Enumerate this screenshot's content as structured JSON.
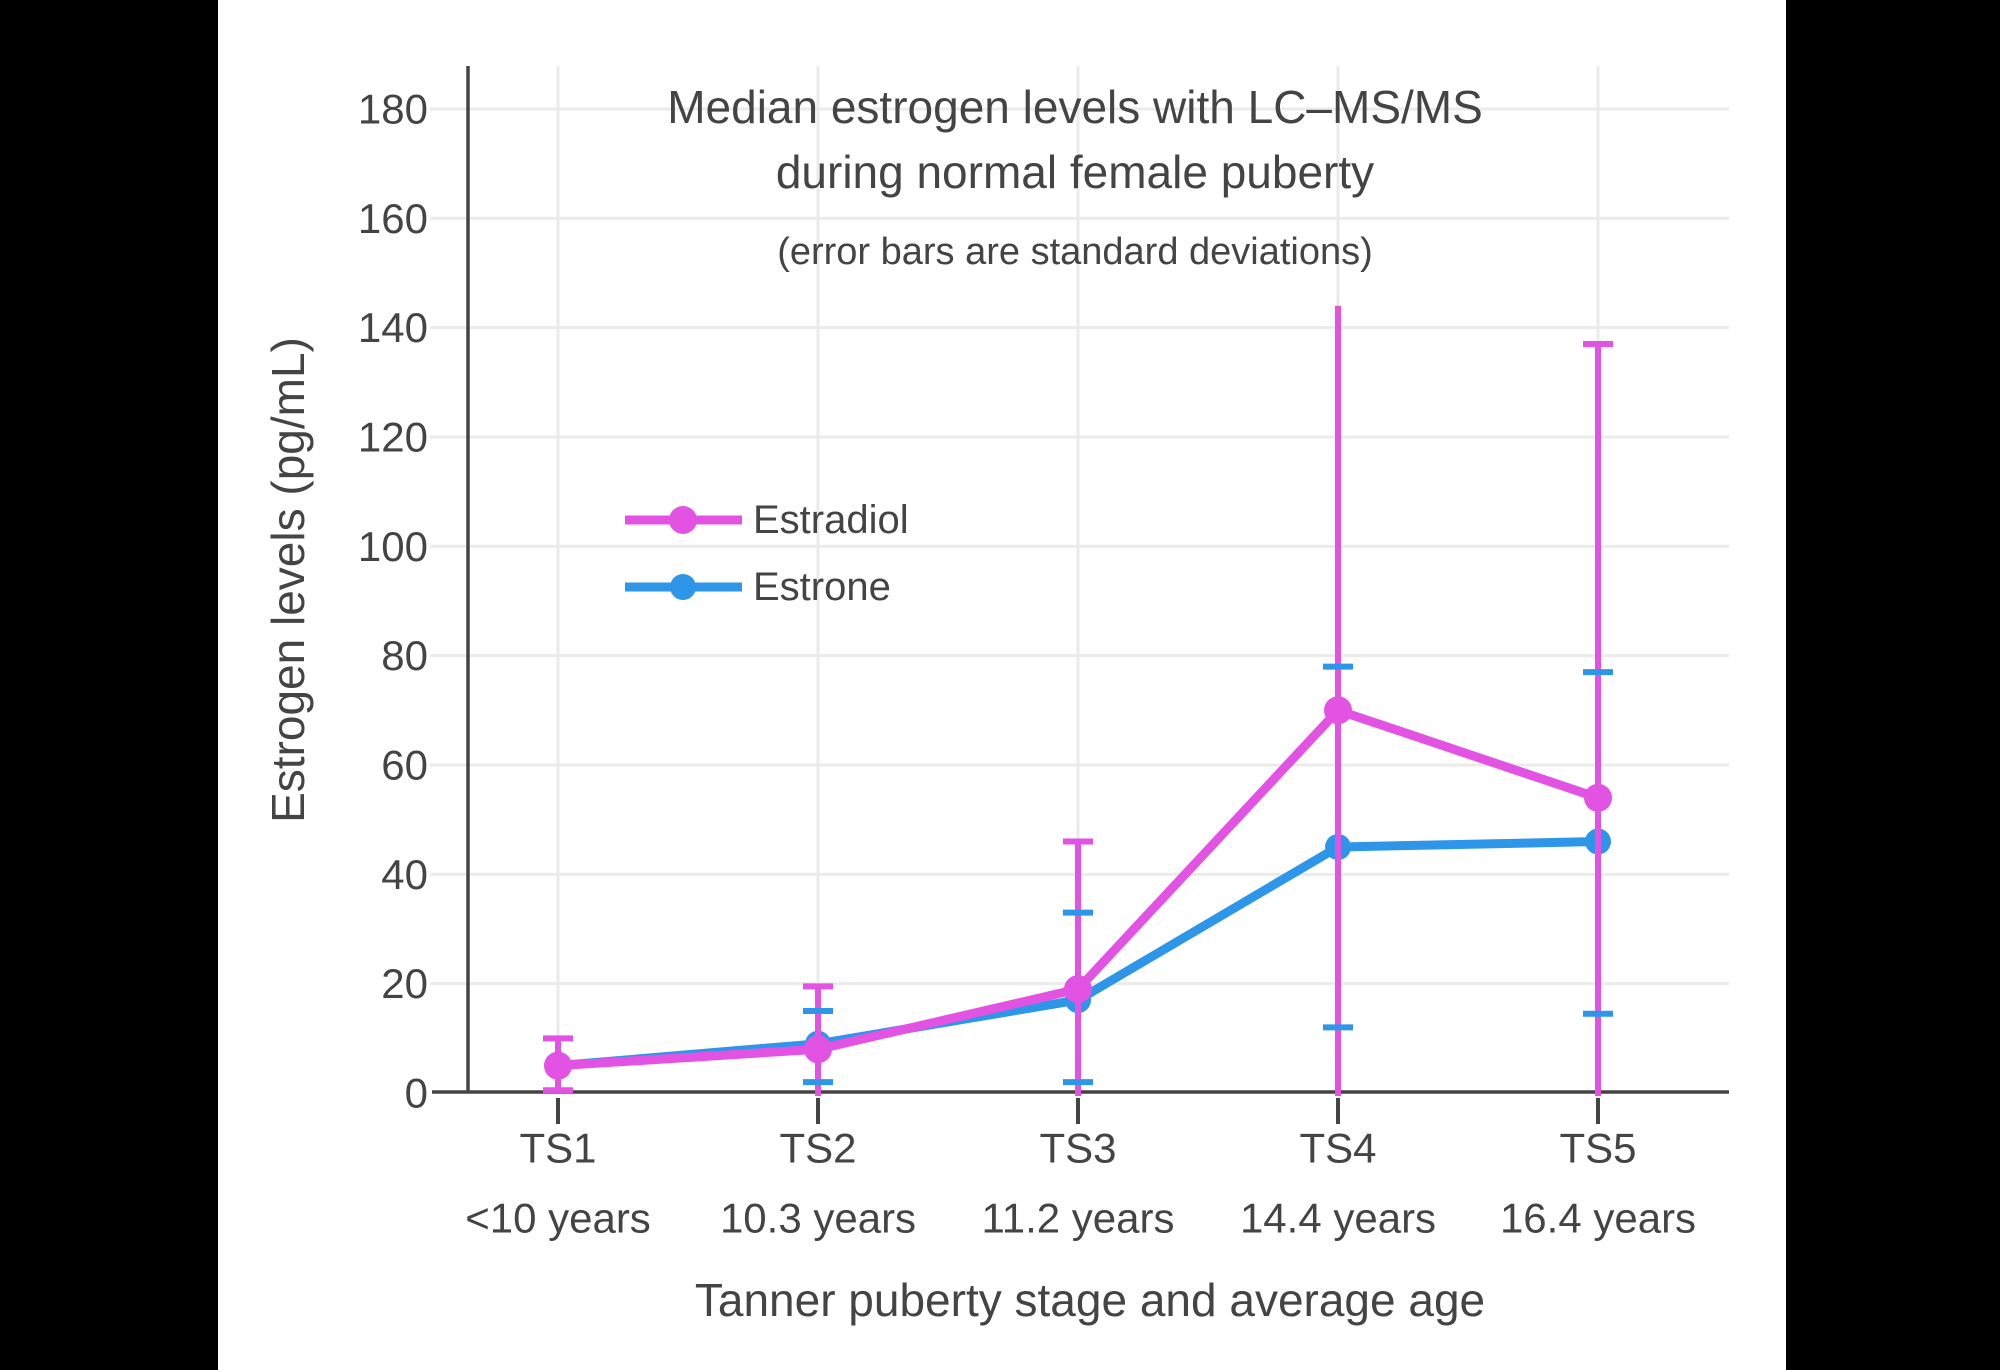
{
  "window": {
    "background_color": "#000000",
    "canvas_color": "#FFFFFF"
  },
  "colors": {
    "text": "#444444",
    "axis": "#444444",
    "gridline": "#EBEBEB",
    "estradiol": "#E353E3",
    "estrone": "#2E96E8"
  },
  "legend": {
    "items": [
      {
        "label": "Estradiol",
        "series": "Estradiol"
      },
      {
        "label": "Estrone",
        "series": "Estrone"
      }
    ]
  },
  "chart_data": {
    "type": "line",
    "title": "Median estrogen levels with LC–MS/MS",
    "title_line2": "during normal female puberty",
    "subtitle": "(error bars are standard deviations)",
    "xlabel": "Tanner puberty stage and average age",
    "ylabel": "Estrogen levels (pg/mL)",
    "ylim": [
      0,
      190
    ],
    "yticks": [
      0,
      20,
      40,
      60,
      80,
      100,
      120,
      140,
      160,
      180
    ],
    "grid": true,
    "legend_position": "inside-upper-left",
    "categories": [
      "TS1",
      "TS2",
      "TS3",
      "TS4",
      "TS5"
    ],
    "category_ages": [
      "<10 years",
      "10.3 years",
      "11.2 years",
      "14.4 years",
      "16.4 years"
    ],
    "units": "pg/mL",
    "series": [
      {
        "name": "Estradiol",
        "color": "#E353E3",
        "values": [
          5,
          8,
          19,
          70,
          54
        ],
        "sd_upper": [
          10,
          19.5,
          46,
          144,
          137
        ],
        "sd_lower": [
          0.5,
          null,
          null,
          null,
          null
        ],
        "sd_lower_clipped_at_zero": [
          false,
          true,
          true,
          true,
          true
        ],
        "caps_upper": [
          true,
          true,
          true,
          false,
          true
        ],
        "caps_lower": [
          true,
          false,
          false,
          false,
          false
        ]
      },
      {
        "name": "Estrone",
        "color": "#2E96E8",
        "values": [
          5,
          9,
          17,
          45,
          46
        ],
        "sd_upper": [
          null,
          15,
          33,
          78,
          77
        ],
        "sd_lower": [
          null,
          2,
          2,
          12,
          14.5
        ],
        "sd_lower_clipped_at_zero": [
          false,
          false,
          false,
          false,
          false
        ],
        "caps_upper": [
          false,
          true,
          true,
          true,
          true
        ],
        "caps_lower": [
          false,
          true,
          true,
          true,
          true
        ]
      }
    ]
  }
}
